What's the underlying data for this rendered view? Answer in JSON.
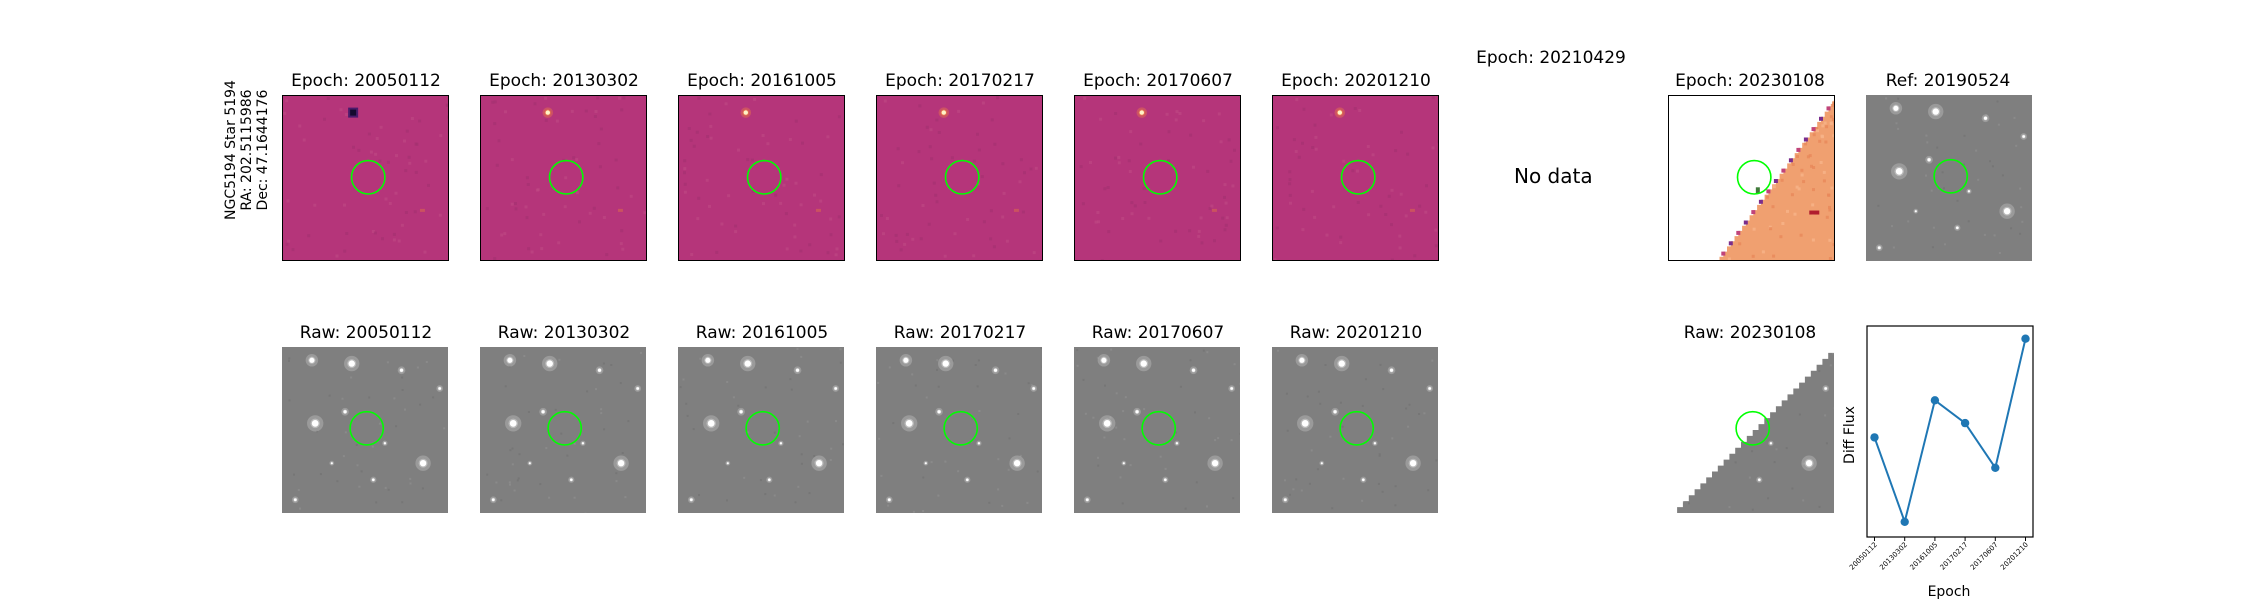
{
  "target": {
    "label_line1": "NGC5194 Star 5194",
    "label_line2": "RA: 202.5115986",
    "label_line3": "Dec: 47.1644176"
  },
  "diff_row": [
    {
      "title": "Epoch: 20050112",
      "style": "diff"
    },
    {
      "title": "Epoch: 20130302",
      "style": "diff"
    },
    {
      "title": "Epoch: 20161005",
      "style": "diff"
    },
    {
      "title": "Epoch: 20170217",
      "style": "diff"
    },
    {
      "title": "Epoch: 20170607",
      "style": "diff"
    },
    {
      "title": "Epoch: 20201210",
      "style": "diff"
    },
    {
      "title": "Epoch: 20210429",
      "style": "nodata",
      "message": "No data"
    },
    {
      "title": "Epoch: 20230108",
      "style": "partial-diff"
    },
    {
      "title": "Ref: 20190524",
      "style": "raw"
    }
  ],
  "raw_row": [
    {
      "title": "Raw: 20050112",
      "style": "raw"
    },
    {
      "title": "Raw: 20130302",
      "style": "raw"
    },
    {
      "title": "Raw: 20161005",
      "style": "raw"
    },
    {
      "title": "Raw: 20170217",
      "style": "raw"
    },
    {
      "title": "Raw: 20170607",
      "style": "raw"
    },
    {
      "title": "Raw: 20201210",
      "style": "raw"
    },
    {
      "title": "Raw: 20230108",
      "style": "partial-raw"
    }
  ],
  "colors": {
    "diff_background": "#b5357a",
    "raw_background": "#7f7f7f",
    "partial_diff_background": "#f0a070",
    "marker_circle": "#00ff00",
    "line_series": "#1f77b4"
  },
  "chart_data": {
    "type": "line",
    "xlabel": "Epoch",
    "ylabel": "Diff Flux",
    "categories": [
      "20050112",
      "20130302",
      "20161005",
      "20170217",
      "20170607",
      "20201210"
    ],
    "values": [
      0.18,
      -0.82,
      0.62,
      0.35,
      -0.18,
      1.35
    ],
    "ylim": [
      -1.0,
      1.5
    ],
    "y_ticks_shown": false,
    "grid": false,
    "legend": "none",
    "marker": "circle"
  }
}
